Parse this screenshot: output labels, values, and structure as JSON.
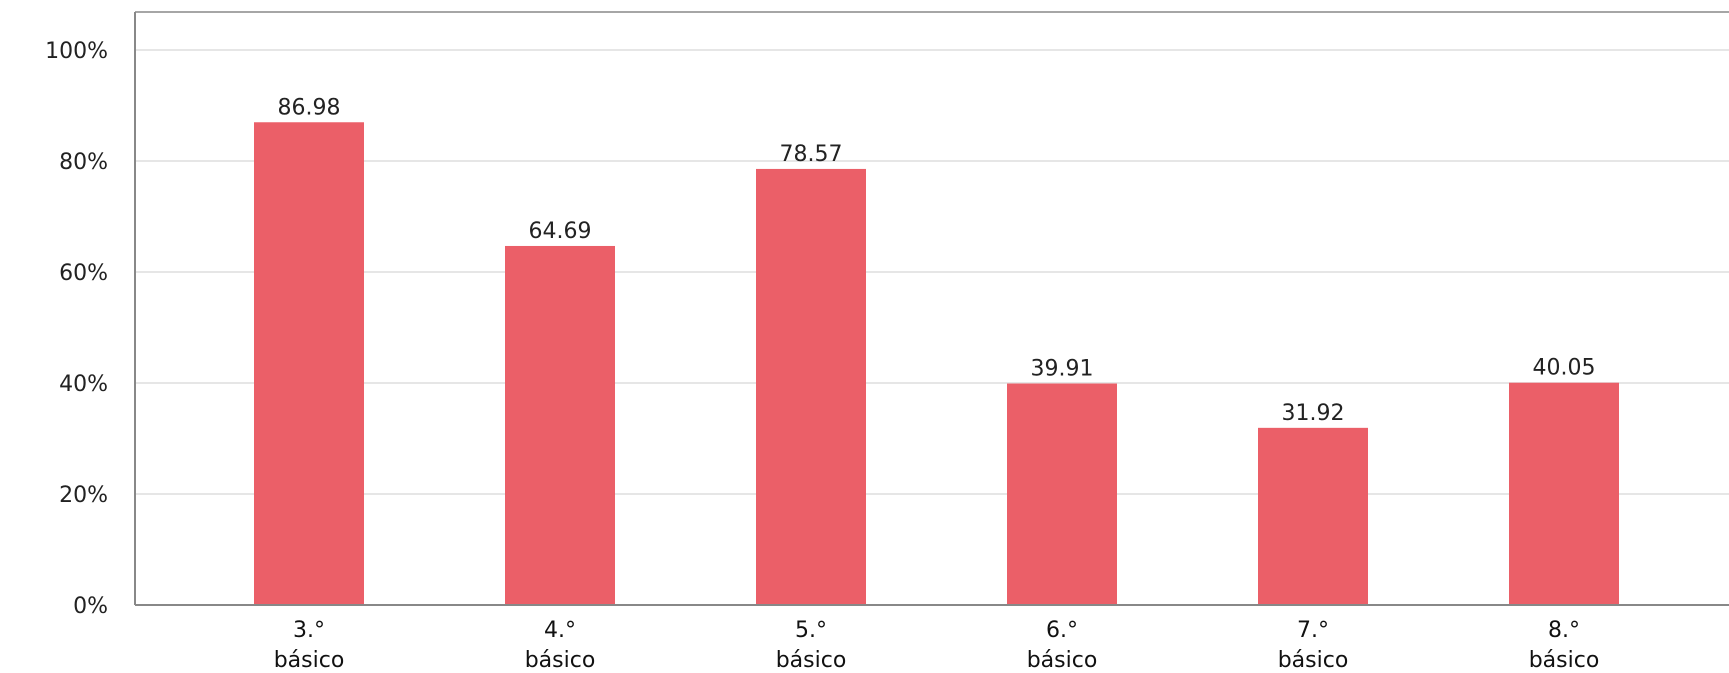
{
  "chart_data": {
    "type": "bar",
    "categories": [
      [
        "3.°",
        "básico"
      ],
      [
        "4.°",
        "básico"
      ],
      [
        "5.°",
        "básico"
      ],
      [
        "6.°",
        "básico"
      ],
      [
        "7.°",
        "básico"
      ],
      [
        "8.°",
        "básico"
      ]
    ],
    "values": [
      86.98,
      64.69,
      78.57,
      39.91,
      31.92,
      40.05
    ],
    "data_labels": [
      "86.98",
      "64.69",
      "78.57",
      "39.91",
      "31.92",
      "40.05"
    ],
    "yticks": [
      "0%",
      "20%",
      "40%",
      "60%",
      "80%",
      "100%"
    ],
    "ytick_values": [
      0,
      20,
      40,
      60,
      80,
      100
    ],
    "ylim": [
      0,
      100
    ],
    "grid": true,
    "legend": false,
    "colors": {
      "bar": "#eb5f68",
      "grid": "#e6e6e6",
      "axis": "#888888"
    }
  }
}
